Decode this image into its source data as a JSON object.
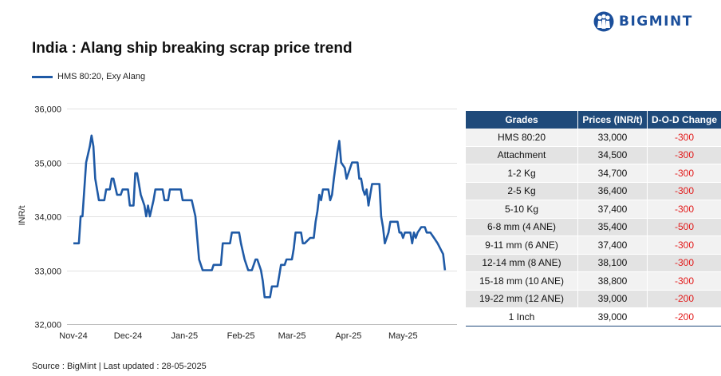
{
  "brand": {
    "name": "BIGMINT",
    "color": "#1b4f9b",
    "logo_icon": "people-logo-icon"
  },
  "source_text": "Source : BigMint | Last updated : 28-05-2025",
  "table": {
    "headers": [
      "Grades",
      "Prices (INR/t)",
      "D-O-D Change"
    ],
    "rows": [
      [
        "HMS 80:20",
        "33,000",
        "-300"
      ],
      [
        "Attachment",
        "34,500",
        "-300"
      ],
      [
        "1-2 Kg",
        "34,700",
        "-300"
      ],
      [
        "2-5 Kg",
        "36,400",
        "-300"
      ],
      [
        "5-10 Kg",
        "37,400",
        "-300"
      ],
      [
        "6-8 mm (4 ANE)",
        "35,400",
        "-500"
      ],
      [
        "9-11 mm (6 ANE)",
        "37,400",
        "-300"
      ],
      [
        "12-14 mm (8 ANE)",
        "38,100",
        "-300"
      ],
      [
        "15-18 mm (10 ANE)",
        "38,800",
        "-300"
      ],
      [
        "19-22 mm (12 ANE)",
        "39,000",
        "-200"
      ],
      [
        "1 Inch",
        "39,000",
        "-200"
      ]
    ],
    "header_color": "#1f4a7a",
    "change_color": "#e21b1b"
  },
  "chart_data": {
    "type": "line",
    "title": "India : Alang ship breaking scrap price trend",
    "xlabel": "",
    "ylabel": "INR/t",
    "ylim": [
      32000,
      36000
    ],
    "yticks": [
      32000,
      33000,
      34000,
      35000,
      36000
    ],
    "ytick_labels": [
      "32,000",
      "33,000",
      "34,000",
      "35,000",
      "36,000"
    ],
    "xlim": [
      "2024-11-01",
      "2025-05-28"
    ],
    "xticks": [
      "2024-11-01",
      "2024-12-01",
      "2025-01-01",
      "2025-02-01",
      "2025-03-01",
      "2025-04-01",
      "2025-05-01"
    ],
    "xtick_labels": [
      "Nov-24",
      "Dec-24",
      "Jan-25",
      "Feb-25",
      "Mar-25",
      "Apr-25",
      "May-25"
    ],
    "grid": "horizontal",
    "legend": "top-left",
    "series": [
      {
        "name": "HMS 80:20, Exy Alang",
        "color": "#1f5aa6",
        "points": [
          [
            "2024-11-01",
            33500
          ],
          [
            "2024-11-04",
            33500
          ],
          [
            "2024-11-05",
            34000
          ],
          [
            "2024-11-06",
            34000
          ],
          [
            "2024-11-08",
            35000
          ],
          [
            "2024-11-10",
            35300
          ],
          [
            "2024-11-11",
            35500
          ],
          [
            "2024-11-12",
            35300
          ],
          [
            "2024-11-13",
            34700
          ],
          [
            "2024-11-15",
            34300
          ],
          [
            "2024-11-18",
            34300
          ],
          [
            "2024-11-19",
            34500
          ],
          [
            "2024-11-21",
            34500
          ],
          [
            "2024-11-22",
            34700
          ],
          [
            "2024-11-23",
            34700
          ],
          [
            "2024-11-25",
            34400
          ],
          [
            "2024-11-27",
            34400
          ],
          [
            "2024-11-28",
            34500
          ],
          [
            "2024-12-01",
            34500
          ],
          [
            "2024-12-02",
            34200
          ],
          [
            "2024-12-04",
            34200
          ],
          [
            "2024-12-05",
            34800
          ],
          [
            "2024-12-06",
            34800
          ],
          [
            "2024-12-08",
            34400
          ],
          [
            "2024-12-10",
            34200
          ],
          [
            "2024-12-11",
            34000
          ],
          [
            "2024-12-12",
            34200
          ],
          [
            "2024-12-13",
            34000
          ],
          [
            "2024-12-15",
            34300
          ],
          [
            "2024-12-16",
            34500
          ],
          [
            "2024-12-20",
            34500
          ],
          [
            "2024-12-21",
            34300
          ],
          [
            "2024-12-23",
            34300
          ],
          [
            "2024-12-24",
            34500
          ],
          [
            "2024-12-30",
            34500
          ],
          [
            "2024-12-31",
            34300
          ],
          [
            "2025-01-05",
            34300
          ],
          [
            "2025-01-07",
            34000
          ],
          [
            "2025-01-08",
            33600
          ],
          [
            "2025-01-09",
            33200
          ],
          [
            "2025-01-11",
            33000
          ],
          [
            "2025-01-16",
            33000
          ],
          [
            "2025-01-17",
            33100
          ],
          [
            "2025-01-21",
            33100
          ],
          [
            "2025-01-22",
            33500
          ],
          [
            "2025-01-26",
            33500
          ],
          [
            "2025-01-27",
            33700
          ],
          [
            "2025-01-31",
            33700
          ],
          [
            "2025-02-01",
            33500
          ],
          [
            "2025-02-03",
            33200
          ],
          [
            "2025-02-05",
            33000
          ],
          [
            "2025-02-07",
            33000
          ],
          [
            "2025-02-09",
            33200
          ],
          [
            "2025-02-10",
            33200
          ],
          [
            "2025-02-12",
            33000
          ],
          [
            "2025-02-13",
            32800
          ],
          [
            "2025-02-14",
            32500
          ],
          [
            "2025-02-17",
            32500
          ],
          [
            "2025-02-18",
            32700
          ],
          [
            "2025-02-21",
            32700
          ],
          [
            "2025-02-22",
            32900
          ],
          [
            "2025-02-23",
            33100
          ],
          [
            "2025-02-25",
            33100
          ],
          [
            "2025-02-26",
            33200
          ],
          [
            "2025-03-01",
            33200
          ],
          [
            "2025-03-02",
            33400
          ],
          [
            "2025-03-03",
            33700
          ],
          [
            "2025-03-06",
            33700
          ],
          [
            "2025-03-07",
            33500
          ],
          [
            "2025-03-08",
            33500
          ],
          [
            "2025-03-11",
            33600
          ],
          [
            "2025-03-13",
            33600
          ],
          [
            "2025-03-14",
            33900
          ],
          [
            "2025-03-15",
            34100
          ],
          [
            "2025-03-16",
            34400
          ],
          [
            "2025-03-17",
            34300
          ],
          [
            "2025-03-18",
            34500
          ],
          [
            "2025-03-21",
            34500
          ],
          [
            "2025-03-22",
            34300
          ],
          [
            "2025-03-23",
            34400
          ],
          [
            "2025-03-24",
            34700
          ],
          [
            "2025-03-26",
            35200
          ],
          [
            "2025-03-27",
            35400
          ],
          [
            "2025-03-28",
            35000
          ],
          [
            "2025-03-30",
            34900
          ],
          [
            "2025-03-31",
            34700
          ],
          [
            "2025-04-01",
            34800
          ],
          [
            "2025-04-03",
            35000
          ],
          [
            "2025-04-06",
            35000
          ],
          [
            "2025-04-07",
            34700
          ],
          [
            "2025-04-08",
            34700
          ],
          [
            "2025-04-09",
            34500
          ],
          [
            "2025-04-10",
            34400
          ],
          [
            "2025-04-11",
            34500
          ],
          [
            "2025-04-12",
            34200
          ],
          [
            "2025-04-13",
            34400
          ],
          [
            "2025-04-14",
            34600
          ],
          [
            "2025-04-18",
            34600
          ],
          [
            "2025-04-19",
            34000
          ],
          [
            "2025-04-20",
            33800
          ],
          [
            "2025-04-21",
            33500
          ],
          [
            "2025-04-23",
            33700
          ],
          [
            "2025-04-24",
            33900
          ],
          [
            "2025-04-28",
            33900
          ],
          [
            "2025-04-29",
            33700
          ],
          [
            "2025-04-30",
            33700
          ],
          [
            "2025-05-01",
            33600
          ],
          [
            "2025-05-02",
            33700
          ],
          [
            "2025-05-05",
            33700
          ],
          [
            "2025-05-06",
            33500
          ],
          [
            "2025-05-07",
            33700
          ],
          [
            "2025-05-08",
            33600
          ],
          [
            "2025-05-09",
            33700
          ],
          [
            "2025-05-11",
            33800
          ],
          [
            "2025-05-13",
            33800
          ],
          [
            "2025-05-14",
            33700
          ],
          [
            "2025-05-16",
            33700
          ],
          [
            "2025-05-18",
            33600
          ],
          [
            "2025-05-20",
            33500
          ],
          [
            "2025-05-23",
            33300
          ],
          [
            "2025-05-24",
            33000
          ]
        ]
      }
    ]
  }
}
